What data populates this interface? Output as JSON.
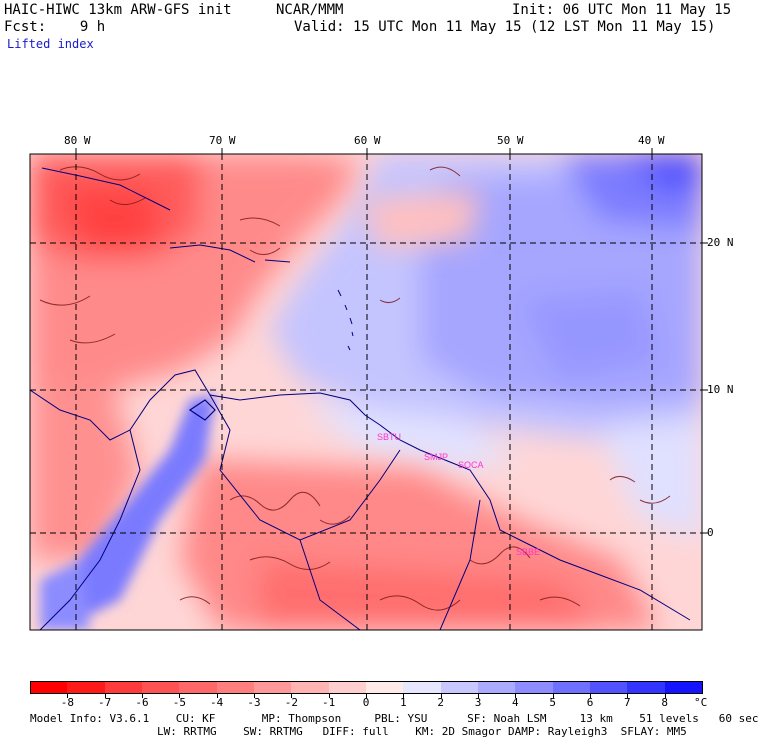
{
  "header": {
    "title": "HAIC-HIWC 13km ARW-GFS init",
    "org": "NCAR/MMM",
    "init": "Init: 06 UTC Mon 11 May 15",
    "forecast": "Fcst:    9 h",
    "valid": "Valid: 15 UTC Mon 11 May 15 (12 LST Mon 11 May 15)",
    "field": "Lifted index"
  },
  "map": {
    "longitude_labels": [
      "80 W",
      "70 W",
      "60 W",
      "50 W",
      "40 W"
    ],
    "latitude_labels": [
      "20 N",
      "10 N",
      "0"
    ],
    "station_labels": [
      "SBTU",
      "SMJP",
      "SOCA",
      "SBBE"
    ],
    "station_color": "#ff33cc",
    "coast_color": "#000080",
    "contour_color": "#7a1a1a"
  },
  "colorbar": {
    "ticks": [
      "-8",
      "-7",
      "-6",
      "-5",
      "-4",
      "-3",
      "-2",
      "-1",
      "0",
      "1",
      "2",
      "3",
      "4",
      "5",
      "6",
      "7",
      "8"
    ],
    "unit": "°C",
    "colors": [
      "#ff1a1a",
      "#ff3a3a",
      "#ff5252",
      "#ff6868",
      "#ff7f7f",
      "#ff9898",
      "#ffb3b3",
      "#ffcfcf",
      "#ffeaea",
      "#e6e6ff",
      "#c8c8ff",
      "#aaaaff",
      "#8d8dff",
      "#7070ff",
      "#5252ff",
      "#3434ff",
      "#1414ff"
    ]
  },
  "footer": {
    "line1": "Model Info: V3.6.1    CU: KF       MP: Thompson     PBL: YSU      SF: Noah LSM     13 km    51 levels   60 sec",
    "line2": "LW: RRTMG    SW: RRTMG   DIFF: full    KM: 2D Smagor DAMP: Rayleigh3  SFLAY: MM5"
  }
}
